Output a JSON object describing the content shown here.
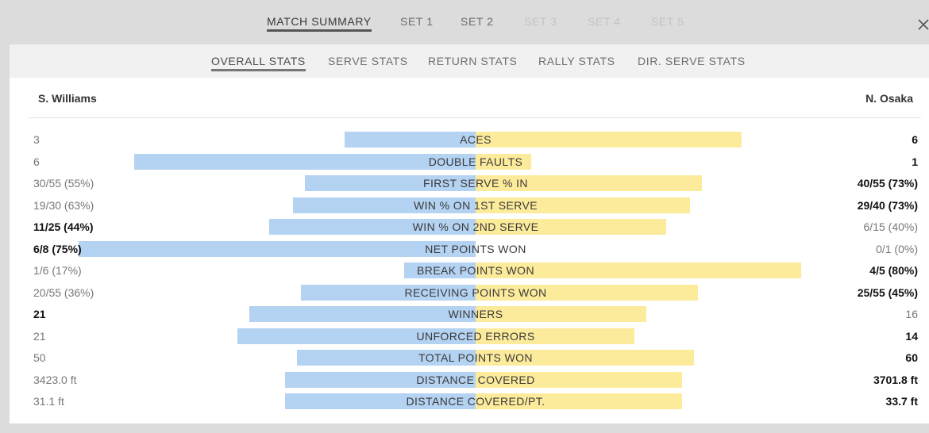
{
  "top_tabs": [
    {
      "label": "MATCH SUMMARY",
      "state": "active"
    },
    {
      "label": "SET 1",
      "state": "normal"
    },
    {
      "label": "SET 2",
      "state": "normal"
    },
    {
      "label": "SET 3",
      "state": "disabled"
    },
    {
      "label": "SET 4",
      "state": "disabled"
    },
    {
      "label": "SET 5",
      "state": "disabled"
    }
  ],
  "sub_tabs": [
    {
      "label": "OVERALL STATS",
      "state": "active"
    },
    {
      "label": "SERVE STATS",
      "state": "normal"
    },
    {
      "label": "RETURN STATS",
      "state": "normal"
    },
    {
      "label": "RALLY STATS",
      "state": "normal"
    },
    {
      "label": "DIR. SERVE STATS",
      "state": "normal"
    }
  ],
  "close_icon": "close-icon",
  "players": {
    "left": "S. Williams",
    "right": "N. Osaka"
  },
  "colors": {
    "left_bar": "#b4d2f1",
    "right_bar": "#fdeb9c"
  },
  "stats": [
    {
      "label": "ACES",
      "left": "3",
      "right": "6",
      "left_share": 0.33,
      "right_share": 0.67,
      "bold": "right"
    },
    {
      "label": "DOUBLE FAULTS",
      "left": "6",
      "right": "1",
      "left_share": 0.86,
      "right_share": 0.14,
      "bold": "right"
    },
    {
      "label": "FIRST SERVE % IN",
      "left": "30/55 (55%)",
      "right": "40/55 (73%)",
      "left_share": 0.43,
      "right_share": 0.57,
      "bold": "right"
    },
    {
      "label": "WIN % ON 1ST SERVE",
      "left": "19/30 (63%)",
      "right": "29/40 (73%)",
      "left_share": 0.46,
      "right_share": 0.54,
      "bold": "right"
    },
    {
      "label": "WIN % ON 2ND SERVE",
      "left": "11/25 (44%)",
      "right": "6/15 (40%)",
      "left_share": 0.52,
      "right_share": 0.48,
      "bold": "left"
    },
    {
      "label": "NET POINTS WON",
      "left": "6/8 (75%)",
      "right": "0/1 (0%)",
      "left_share": 1.0,
      "right_share": 0.0,
      "bold": "left"
    },
    {
      "label": "BREAK POINTS WON",
      "left": "1/6 (17%)",
      "right": "4/5 (80%)",
      "left_share": 0.18,
      "right_share": 0.82,
      "bold": "right"
    },
    {
      "label": "RECEIVING POINTS WON",
      "left": "20/55 (36%)",
      "right": "25/55 (45%)",
      "left_share": 0.44,
      "right_share": 0.56,
      "bold": "right"
    },
    {
      "label": "WINNERS",
      "left": "21",
      "right": "16",
      "left_share": 0.57,
      "right_share": 0.43,
      "bold": "left"
    },
    {
      "label": "UNFORCED ERRORS",
      "left": "21",
      "right": "14",
      "left_share": 0.6,
      "right_share": 0.4,
      "bold": "right"
    },
    {
      "label": "TOTAL POINTS WON",
      "left": "50",
      "right": "60",
      "left_share": 0.45,
      "right_share": 0.55,
      "bold": "right"
    },
    {
      "label": "DISTANCE COVERED",
      "left": "3423.0 ft",
      "right": "3701.8 ft",
      "left_share": 0.48,
      "right_share": 0.52,
      "bold": "right"
    },
    {
      "label": "DISTANCE COVERED/PT.",
      "left": "31.1 ft",
      "right": "33.7 ft",
      "left_share": 0.48,
      "right_share": 0.52,
      "bold": "right"
    }
  ]
}
